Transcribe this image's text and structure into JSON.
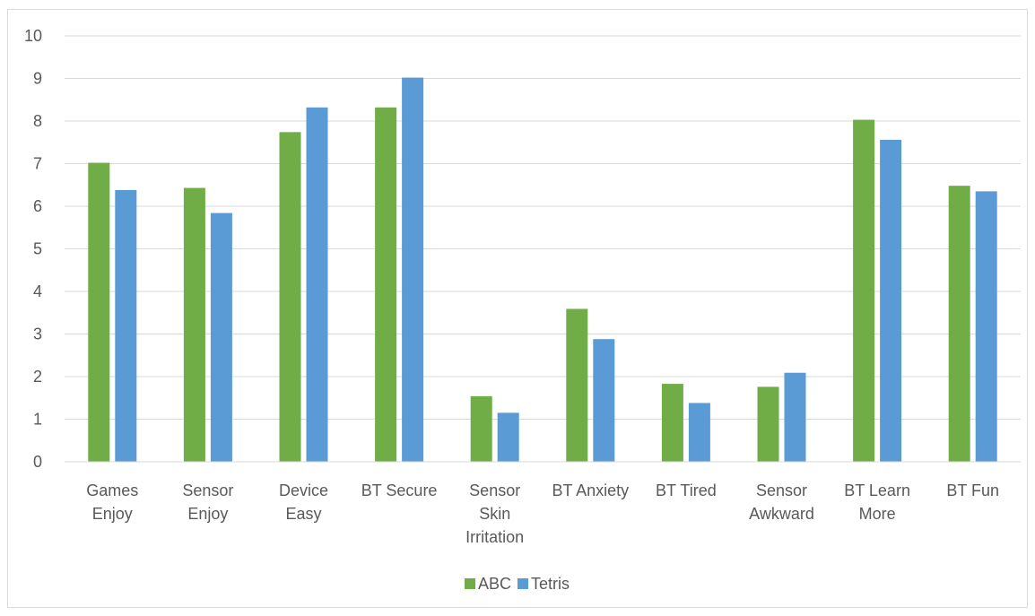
{
  "chart_data": {
    "type": "bar",
    "title": "",
    "xlabel": "",
    "ylabel": "",
    "ylim": [
      0,
      10
    ],
    "yticks": [
      0,
      1,
      2,
      3,
      4,
      5,
      6,
      7,
      8,
      9,
      10
    ],
    "grid": "horizontal",
    "legend_position": "bottom",
    "categories": [
      [
        "Games",
        "Enjoy"
      ],
      [
        "Sensor",
        "Enjoy"
      ],
      [
        "Device",
        "Easy"
      ],
      [
        "BT Secure"
      ],
      [
        "Sensor",
        "Skin",
        "Irritation"
      ],
      [
        "BT Anxiety"
      ],
      [
        "BT Tired"
      ],
      [
        "Sensor",
        "Awkward"
      ],
      [
        "BT Learn",
        "More"
      ],
      [
        "BT Fun"
      ]
    ],
    "series": [
      {
        "name": "ABC",
        "color": "#70ad47",
        "values": [
          7.02,
          6.43,
          7.74,
          8.32,
          1.54,
          3.59,
          1.83,
          1.76,
          8.03,
          6.48
        ]
      },
      {
        "name": "Tetris",
        "color": "#5b9bd5",
        "values": [
          6.38,
          5.84,
          8.32,
          9.02,
          1.15,
          2.88,
          1.38,
          2.09,
          7.56,
          6.35
        ]
      }
    ]
  }
}
